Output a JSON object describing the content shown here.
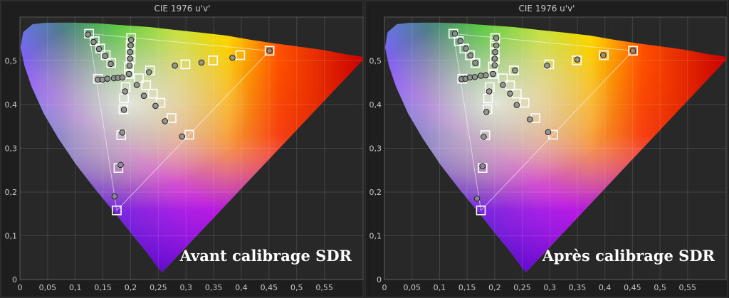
{
  "chart_data": [
    {
      "type": "scatter",
      "title": "CIE 1976 u'v'",
      "annotation": "Avant calibrage SDR",
      "xlim": [
        0,
        0.62
      ],
      "ylim": [
        0,
        0.6
      ],
      "x_ticks": [
        "0",
        "0,05",
        "0,1",
        "0,15",
        "0,2",
        "0,25",
        "0,3",
        "0,35",
        "0,4",
        "0,45",
        "0,5",
        "0,55"
      ],
      "x_tick_values": [
        0,
        0.05,
        0.1,
        0.15,
        0.2,
        0.25,
        0.3,
        0.35,
        0.4,
        0.45,
        0.5,
        0.55
      ],
      "y_ticks": [
        "0",
        "0,1",
        "0,2",
        "0,3",
        "0,4",
        "0,5"
      ],
      "y_tick_values": [
        0,
        0.1,
        0.2,
        0.3,
        0.4,
        0.5
      ],
      "gamut_primaries": {
        "red": [
          0.451,
          0.523
        ],
        "green": [
          0.125,
          0.562
        ],
        "blue": [
          0.175,
          0.158
        ]
      },
      "targets": [
        [
          0.125,
          0.562
        ],
        [
          0.135,
          0.545
        ],
        [
          0.145,
          0.528
        ],
        [
          0.155,
          0.513
        ],
        [
          0.165,
          0.495
        ],
        [
          0.197,
          0.47
        ],
        [
          0.197,
          0.487
        ],
        [
          0.2,
          0.503
        ],
        [
          0.2,
          0.52
        ],
        [
          0.2,
          0.537
        ],
        [
          0.201,
          0.552
        ],
        [
          0.215,
          0.46
        ],
        [
          0.228,
          0.444
        ],
        [
          0.24,
          0.425
        ],
        [
          0.254,
          0.404
        ],
        [
          0.274,
          0.369
        ],
        [
          0.306,
          0.331
        ],
        [
          0.235,
          0.478
        ],
        [
          0.299,
          0.492
        ],
        [
          0.349,
          0.501
        ],
        [
          0.398,
          0.513
        ],
        [
          0.451,
          0.523
        ],
        [
          0.141,
          0.459
        ],
        [
          0.191,
          0.44
        ],
        [
          0.188,
          0.414
        ],
        [
          0.187,
          0.389
        ],
        [
          0.183,
          0.33
        ],
        [
          0.178,
          0.255
        ],
        [
          0.175,
          0.158
        ]
      ],
      "measured": [
        [
          0.123,
          0.56
        ],
        [
          0.133,
          0.543
        ],
        [
          0.143,
          0.527
        ],
        [
          0.154,
          0.511
        ],
        [
          0.164,
          0.493
        ],
        [
          0.197,
          0.47
        ],
        [
          0.198,
          0.489
        ],
        [
          0.199,
          0.505
        ],
        [
          0.199,
          0.52
        ],
        [
          0.2,
          0.535
        ],
        [
          0.201,
          0.548
        ],
        [
          0.211,
          0.445
        ],
        [
          0.224,
          0.42
        ],
        [
          0.245,
          0.397
        ],
        [
          0.262,
          0.362
        ],
        [
          0.293,
          0.327
        ],
        [
          0.233,
          0.474
        ],
        [
          0.28,
          0.489
        ],
        [
          0.328,
          0.496
        ],
        [
          0.384,
          0.507
        ],
        [
          0.451,
          0.523
        ],
        [
          0.141,
          0.457
        ],
        [
          0.149,
          0.457
        ],
        [
          0.158,
          0.459
        ],
        [
          0.17,
          0.46
        ],
        [
          0.177,
          0.461
        ],
        [
          0.185,
          0.462
        ],
        [
          0.19,
          0.43
        ],
        [
          0.188,
          0.388
        ],
        [
          0.185,
          0.336
        ],
        [
          0.182,
          0.262
        ],
        [
          0.171,
          0.19
        ]
      ]
    },
    {
      "type": "scatter",
      "title": "CIE 1976 u'v'",
      "annotation": "Après calibrage SDR",
      "xlim": [
        0,
        0.62
      ],
      "ylim": [
        0,
        0.6
      ],
      "x_ticks": [
        "0",
        "0,05",
        "0,1",
        "0,15",
        "0,2",
        "0,25",
        "0,3",
        "0,35",
        "0,4",
        "0,45",
        "0,5",
        "0,55"
      ],
      "x_tick_values": [
        0,
        0.05,
        0.1,
        0.15,
        0.2,
        0.25,
        0.3,
        0.35,
        0.4,
        0.45,
        0.5,
        0.55
      ],
      "y_ticks": [
        "0",
        "0,1",
        "0,2",
        "0,3",
        "0,4",
        "0,5"
      ],
      "y_tick_values": [
        0,
        0.1,
        0.2,
        0.3,
        0.4,
        0.5
      ],
      "gamut_primaries": {
        "red": [
          0.451,
          0.523
        ],
        "green": [
          0.125,
          0.562
        ],
        "blue": [
          0.175,
          0.158
        ]
      },
      "targets": [
        [
          0.125,
          0.562
        ],
        [
          0.135,
          0.545
        ],
        [
          0.145,
          0.528
        ],
        [
          0.155,
          0.513
        ],
        [
          0.165,
          0.495
        ],
        [
          0.197,
          0.47
        ],
        [
          0.197,
          0.487
        ],
        [
          0.2,
          0.503
        ],
        [
          0.2,
          0.52
        ],
        [
          0.2,
          0.537
        ],
        [
          0.201,
          0.552
        ],
        [
          0.215,
          0.46
        ],
        [
          0.228,
          0.444
        ],
        [
          0.24,
          0.425
        ],
        [
          0.254,
          0.404
        ],
        [
          0.274,
          0.369
        ],
        [
          0.306,
          0.331
        ],
        [
          0.235,
          0.478
        ],
        [
          0.299,
          0.492
        ],
        [
          0.349,
          0.501
        ],
        [
          0.398,
          0.513
        ],
        [
          0.451,
          0.523
        ],
        [
          0.141,
          0.459
        ],
        [
          0.191,
          0.44
        ],
        [
          0.188,
          0.414
        ],
        [
          0.187,
          0.389
        ],
        [
          0.183,
          0.33
        ],
        [
          0.178,
          0.255
        ],
        [
          0.175,
          0.158
        ]
      ],
      "measured": [
        [
          0.128,
          0.562
        ],
        [
          0.138,
          0.545
        ],
        [
          0.148,
          0.528
        ],
        [
          0.156,
          0.512
        ],
        [
          0.165,
          0.495
        ],
        [
          0.197,
          0.47
        ],
        [
          0.2,
          0.49
        ],
        [
          0.2,
          0.505
        ],
        [
          0.201,
          0.52
        ],
        [
          0.203,
          0.535
        ],
        [
          0.203,
          0.552
        ],
        [
          0.215,
          0.445
        ],
        [
          0.228,
          0.425
        ],
        [
          0.24,
          0.399
        ],
        [
          0.264,
          0.366
        ],
        [
          0.297,
          0.337
        ],
        [
          0.237,
          0.478
        ],
        [
          0.295,
          0.489
        ],
        [
          0.35,
          0.503
        ],
        [
          0.397,
          0.513
        ],
        [
          0.451,
          0.523
        ],
        [
          0.14,
          0.458
        ],
        [
          0.147,
          0.459
        ],
        [
          0.155,
          0.462
        ],
        [
          0.164,
          0.463
        ],
        [
          0.175,
          0.466
        ],
        [
          0.184,
          0.467
        ],
        [
          0.19,
          0.43
        ],
        [
          0.185,
          0.383
        ],
        [
          0.18,
          0.326
        ],
        [
          0.178,
          0.259
        ],
        [
          0.168,
          0.185
        ]
      ]
    }
  ]
}
